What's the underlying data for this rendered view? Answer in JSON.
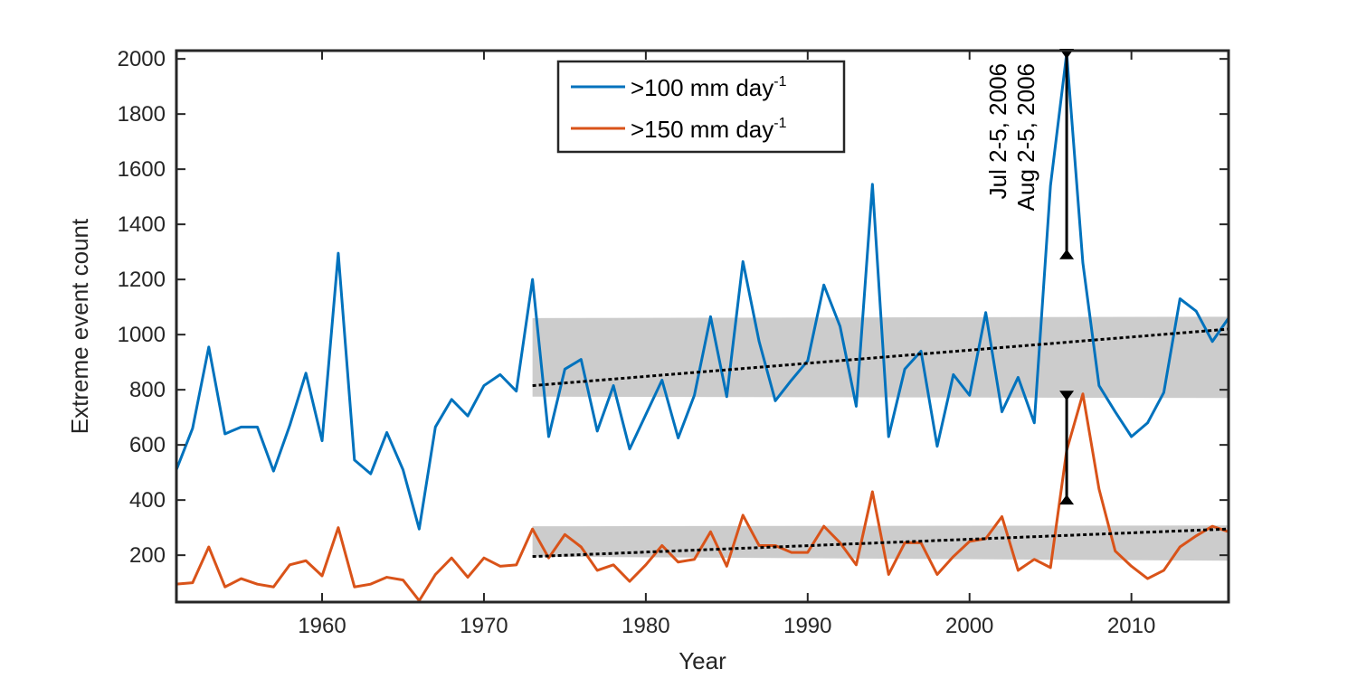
{
  "chart_data": {
    "type": "line",
    "xlabel": "Year",
    "ylabel": "Extreme event count",
    "xlim": [
      1951,
      2016
    ],
    "ylim": [
      30,
      2030
    ],
    "xticks": [
      1960,
      1970,
      1980,
      1990,
      2000,
      2010
    ],
    "yticks": [
      200,
      400,
      600,
      800,
      1000,
      1200,
      1400,
      1600,
      1800,
      2000
    ],
    "grid": false,
    "legend_placement": "top-center",
    "x": [
      1951,
      1952,
      1953,
      1954,
      1955,
      1956,
      1957,
      1958,
      1959,
      1960,
      1961,
      1962,
      1963,
      1964,
      1965,
      1966,
      1967,
      1968,
      1969,
      1970,
      1971,
      1972,
      1973,
      1974,
      1975,
      1976,
      1977,
      1978,
      1979,
      1980,
      1981,
      1982,
      1983,
      1984,
      1985,
      1986,
      1987,
      1988,
      1989,
      1990,
      1991,
      1992,
      1993,
      1994,
      1995,
      1996,
      1997,
      1998,
      1999,
      2000,
      2001,
      2002,
      2003,
      2004,
      2005,
      2006,
      2007,
      2008,
      2009,
      2010,
      2011,
      2012,
      2013,
      2014,
      2015,
      2016
    ],
    "series": [
      {
        "name": ">100 mm day",
        "name_sup": "-1",
        "color": "#0072BD",
        "values": [
          510,
          660,
          955,
          640,
          665,
          665,
          505,
          670,
          860,
          615,
          1295,
          545,
          495,
          645,
          510,
          295,
          665,
          765,
          705,
          815,
          855,
          795,
          1200,
          630,
          875,
          910,
          650,
          815,
          585,
          710,
          835,
          625,
          780,
          1065,
          775,
          1265,
          975,
          760,
          835,
          905,
          1180,
          1030,
          740,
          1545,
          630,
          875,
          940,
          595,
          855,
          780,
          1080,
          720,
          845,
          680,
          1540,
          2020,
          1260,
          815,
          720,
          630,
          680,
          790,
          1130,
          1085,
          975,
          1060
        ]
      },
      {
        "name": ">150 mm day",
        "name_sup": "-1",
        "color": "#D95319",
        "values": [
          95,
          100,
          230,
          85,
          115,
          95,
          85,
          165,
          180,
          125,
          300,
          85,
          95,
          120,
          110,
          35,
          130,
          190,
          120,
          190,
          160,
          165,
          295,
          190,
          275,
          230,
          145,
          165,
          105,
          165,
          235,
          175,
          185,
          285,
          160,
          345,
          235,
          235,
          210,
          210,
          305,
          245,
          165,
          430,
          130,
          245,
          245,
          130,
          195,
          250,
          260,
          340,
          145,
          185,
          155,
          580,
          785,
          440,
          215,
          160,
          115,
          145,
          230,
          270,
          305,
          285
        ]
      }
    ],
    "trends": [
      {
        "series": ">100 mm day",
        "x": [
          1973,
          2016
        ],
        "y": [
          815,
          1020
        ],
        "band_upper": [
          1060,
          1065
        ],
        "band_lower": [
          775,
          770
        ]
      },
      {
        "series": ">150 mm day",
        "x": [
          1973,
          2016
        ],
        "y": [
          195,
          295
        ],
        "band_upper": [
          305,
          308
        ],
        "band_lower": [
          195,
          180
        ]
      }
    ],
    "annotations": [
      {
        "text": "Jul 2-5, 2006",
        "x": 2006
      },
      {
        "text": "Aug 2-5, 2006",
        "x": 2006
      }
    ],
    "error_bars": [
      {
        "x": 2006,
        "low": 1290,
        "high": 2020
      },
      {
        "x": 2006,
        "low": 400,
        "high": 780
      }
    ]
  }
}
